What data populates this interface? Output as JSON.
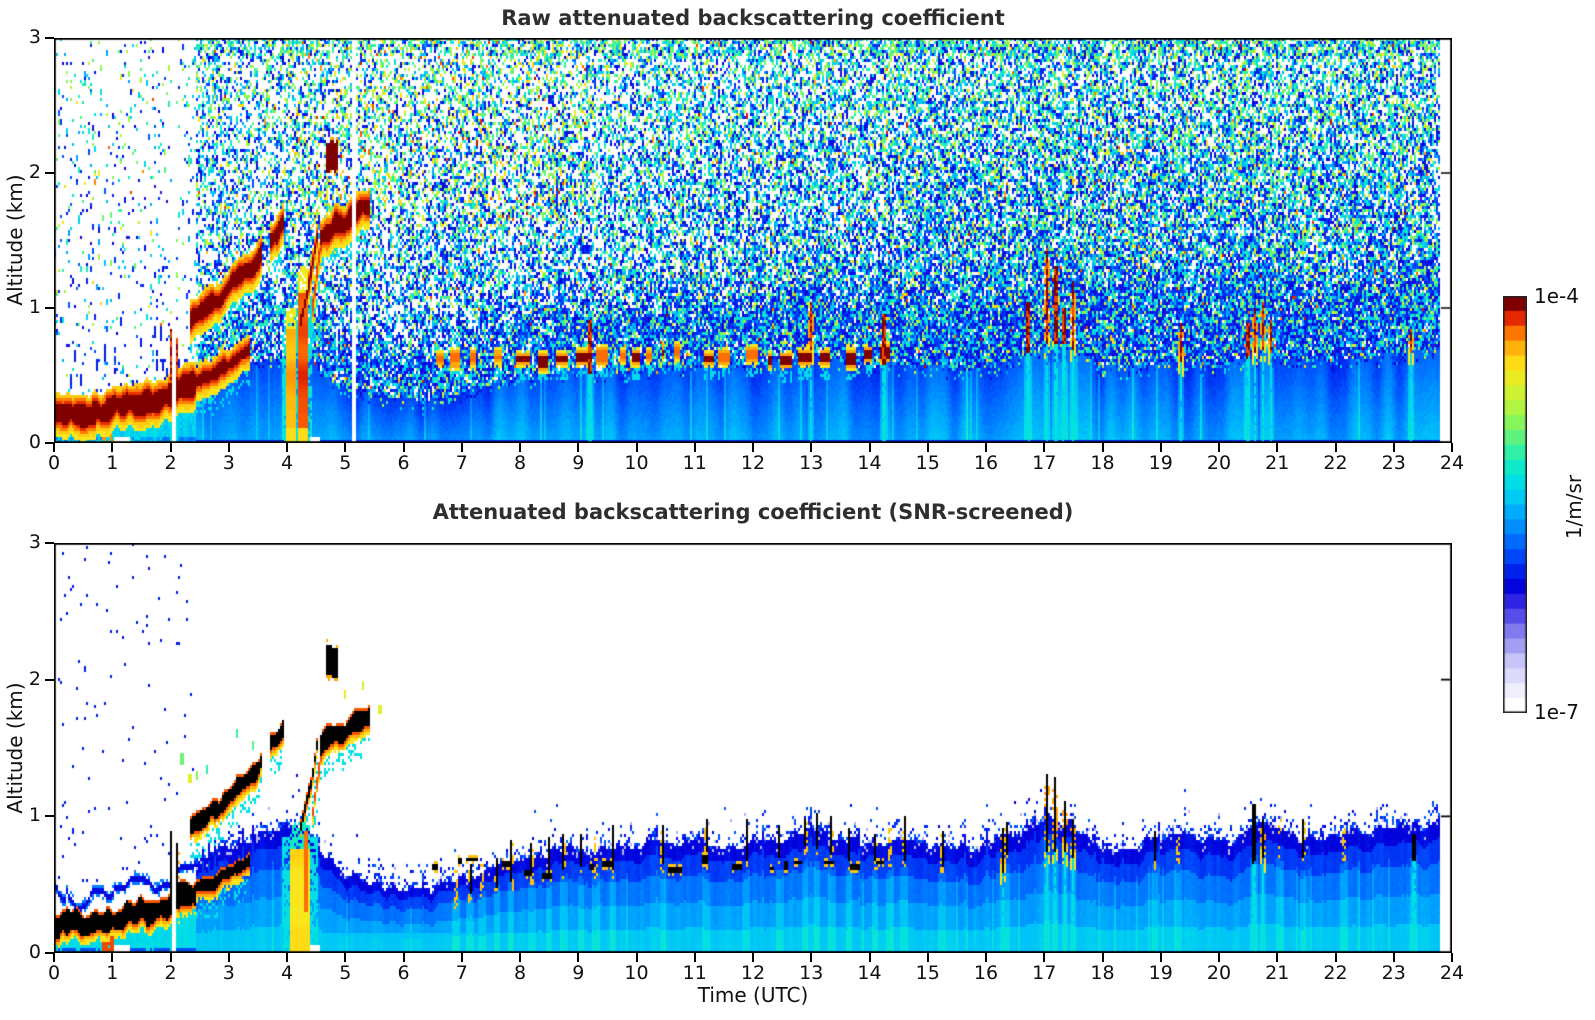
{
  "panels": [
    {
      "title": "Raw attenuated backscattering coefficient"
    },
    {
      "title": "Attenuated backscattering coefficient (SNR-screened)"
    }
  ],
  "x_axis": {
    "label": "Time (UTC)",
    "min": 0,
    "max": 24,
    "ticks": [
      0,
      1,
      2,
      3,
      4,
      5,
      6,
      7,
      8,
      9,
      10,
      11,
      12,
      13,
      14,
      15,
      16,
      17,
      18,
      19,
      20,
      21,
      22,
      23,
      24
    ]
  },
  "y_axis": {
    "label": "Altitude (km)",
    "min": 0,
    "max": 3,
    "ticks": [
      0,
      1,
      2,
      3
    ]
  },
  "colorbar": {
    "top_label": "1e-4",
    "bottom_label": "1e-7",
    "units": "1/m/sr",
    "levels": 28,
    "scale": "log"
  },
  "chart_data": {
    "type": "heatmap",
    "x": {
      "name": "Time (UTC)",
      "min": 0,
      "max": 24,
      "units": "hours"
    },
    "y": {
      "name": "Altitude (km)",
      "min": 0,
      "max": 3
    },
    "z_units": "1/m/sr",
    "scale": "log10",
    "z_min": 1e-07,
    "z_max": 0.0001,
    "data_end_hour": 23.78,
    "gap_hours_raw": [
      [
        2.03,
        2.09
      ],
      [
        5.12,
        5.17
      ]
    ],
    "gap_hours_screened": [
      [
        2.03,
        2.09
      ]
    ],
    "colormap_stops": [
      [
        0.0,
        "#ffffff"
      ],
      [
        0.05,
        "#e8e7fb"
      ],
      [
        0.1,
        "#cfcdf8"
      ],
      [
        0.14,
        "#aba7f3"
      ],
      [
        0.18,
        "#847ef0"
      ],
      [
        0.22,
        "#5a50ea"
      ],
      [
        0.26,
        "#2b22e4"
      ],
      [
        0.3,
        "#0000dc"
      ],
      [
        0.35,
        "#0032f5"
      ],
      [
        0.4,
        "#0064ff"
      ],
      [
        0.45,
        "#0092ff"
      ],
      [
        0.5,
        "#00bcfb"
      ],
      [
        0.55,
        "#00dcea"
      ],
      [
        0.6,
        "#10ecc4"
      ],
      [
        0.65,
        "#48f192"
      ],
      [
        0.7,
        "#84f55e"
      ],
      [
        0.75,
        "#b8f53c"
      ],
      [
        0.8,
        "#e0f028"
      ],
      [
        0.84,
        "#fce51b"
      ],
      [
        0.88,
        "#ffc30e"
      ],
      [
        0.91,
        "#ff9305"
      ],
      [
        0.94,
        "#f95b00"
      ],
      [
        0.965,
        "#e42800"
      ],
      [
        0.985,
        "#bc0700"
      ],
      [
        1.0,
        "#800000"
      ]
    ],
    "bl_top_km": [
      [
        0,
        0.45
      ],
      [
        0.4,
        0.36
      ],
      [
        0.7,
        0.42
      ],
      [
        1.0,
        0.44
      ],
      [
        1.4,
        0.52
      ],
      [
        1.8,
        0.5
      ],
      [
        2.05,
        0.55
      ],
      [
        2.3,
        0.6
      ],
      [
        2.6,
        0.72
      ],
      [
        3.0,
        0.78
      ],
      [
        3.4,
        0.83
      ],
      [
        3.8,
        0.88
      ],
      [
        4.1,
        0.92
      ],
      [
        4.35,
        0.95
      ],
      [
        4.6,
        0.72
      ],
      [
        4.9,
        0.6
      ],
      [
        5.2,
        0.56
      ],
      [
        5.6,
        0.52
      ],
      [
        6.0,
        0.46
      ],
      [
        6.35,
        0.44
      ],
      [
        6.7,
        0.5
      ],
      [
        7.0,
        0.55
      ],
      [
        7.4,
        0.6
      ],
      [
        7.8,
        0.65
      ],
      [
        8.2,
        0.7
      ],
      [
        8.6,
        0.73
      ],
      [
        9.0,
        0.78
      ],
      [
        9.4,
        0.74
      ],
      [
        9.8,
        0.76
      ],
      [
        10.2,
        0.78
      ],
      [
        10.6,
        0.8
      ],
      [
        11.0,
        0.82
      ],
      [
        11.4,
        0.78
      ],
      [
        11.8,
        0.8
      ],
      [
        12.2,
        0.82
      ],
      [
        12.6,
        0.86
      ],
      [
        13.0,
        0.94
      ],
      [
        13.2,
        0.88
      ],
      [
        13.6,
        0.82
      ],
      [
        14.0,
        0.8
      ],
      [
        14.4,
        0.84
      ],
      [
        14.8,
        0.8
      ],
      [
        15.2,
        0.78
      ],
      [
        15.6,
        0.76
      ],
      [
        16.0,
        0.8
      ],
      [
        16.4,
        0.86
      ],
      [
        16.8,
        0.92
      ],
      [
        17.1,
        1.0
      ],
      [
        17.4,
        0.98
      ],
      [
        17.7,
        0.88
      ],
      [
        18.0,
        0.8
      ],
      [
        18.4,
        0.76
      ],
      [
        18.8,
        0.8
      ],
      [
        19.2,
        0.85
      ],
      [
        19.6,
        0.83
      ],
      [
        20.0,
        0.78
      ],
      [
        20.4,
        0.85
      ],
      [
        20.7,
        0.95
      ],
      [
        21.0,
        0.9
      ],
      [
        21.4,
        0.84
      ],
      [
        21.8,
        0.87
      ],
      [
        22.2,
        0.88
      ],
      [
        22.6,
        0.9
      ],
      [
        23.0,
        0.9
      ],
      [
        23.4,
        0.93
      ],
      [
        23.78,
        0.95
      ]
    ],
    "noise": {
      "density_vs_hour": [
        [
          0,
          0.1
        ],
        [
          1.85,
          0.1
        ],
        [
          2.7,
          0.52
        ],
        [
          5,
          0.55
        ],
        [
          8,
          0.6
        ],
        [
          11,
          0.68
        ],
        [
          14,
          0.78
        ],
        [
          17,
          0.84
        ],
        [
          24,
          0.86
        ]
      ],
      "warm_region": {
        "t0": 4.0,
        "t1": 9.3,
        "z_min": 1.6
      }
    },
    "features": {
      "ground_layer": {
        "path": [
          [
            0,
            0.2
          ],
          [
            0.3,
            0.22
          ],
          [
            0.6,
            0.21
          ],
          [
            0.9,
            0.25
          ],
          [
            1.2,
            0.27
          ],
          [
            1.5,
            0.3
          ],
          [
            1.75,
            0.3
          ],
          [
            1.95,
            0.33
          ],
          [
            2.1,
            0.4
          ],
          [
            2.25,
            0.44
          ],
          [
            2.45,
            0.45
          ]
        ],
        "half": 0.075
      },
      "ground_layer_rise": {
        "path": [
          [
            2.45,
            0.46
          ],
          [
            2.6,
            0.5
          ],
          [
            2.85,
            0.55
          ],
          [
            3.1,
            0.61
          ],
          [
            3.35,
            0.66
          ]
        ],
        "half": 0.04
      },
      "ribbon1": {
        "path": [
          [
            2.35,
            0.92
          ],
          [
            2.6,
            1.02
          ],
          [
            2.85,
            1.06
          ],
          [
            3.05,
            1.17
          ],
          [
            3.25,
            1.24
          ],
          [
            3.45,
            1.33
          ],
          [
            3.6,
            1.44
          ],
          [
            3.75,
            1.53
          ],
          [
            3.95,
            1.63
          ]
        ],
        "half": 0.055,
        "gap": [
          3.56,
          3.7
        ]
      },
      "ribbon2": {
        "path": [
          [
            4.55,
            1.48
          ],
          [
            4.7,
            1.57
          ],
          [
            4.85,
            1.62
          ],
          [
            5.0,
            1.6
          ],
          [
            5.15,
            1.68
          ],
          [
            5.3,
            1.73
          ],
          [
            5.42,
            1.75
          ]
        ],
        "half": 0.065
      },
      "diag": {
        "path": [
          [
            4.22,
            0.9
          ],
          [
            4.34,
            1.1
          ],
          [
            4.44,
            1.32
          ],
          [
            4.52,
            1.55
          ]
        ],
        "half": 0.04
      },
      "red_streak": {
        "path": [
          [
            4.44,
            1.0
          ],
          [
            4.52,
            1.28
          ],
          [
            4.6,
            1.52
          ]
        ],
        "half": 0.03
      },
      "cloud": {
        "t0": 4.68,
        "t1": 4.86,
        "z0": 2.02,
        "z1": 2.24
      },
      "surface_red_column": {
        "t0": 0.82,
        "t1": 1.04
      },
      "white_notches": [
        [
          1.02,
          1.3
        ],
        [
          4.38,
          4.56
        ]
      ],
      "elevated_layer": {
        "t0": 6.35,
        "t1": 14.45,
        "z_center": 0.63,
        "z_amp": 0.07
      },
      "raw_spikes": [
        [
          2.02,
          0.85
        ],
        [
          2.1,
          0.78
        ],
        [
          9.2,
          0.92
        ],
        [
          13.0,
          1.05
        ],
        [
          14.25,
          0.95
        ],
        [
          16.72,
          1.05
        ],
        [
          17.05,
          1.45
        ],
        [
          17.2,
          1.3
        ],
        [
          17.34,
          1.0
        ],
        [
          17.5,
          1.2
        ],
        [
          19.35,
          0.9
        ],
        [
          20.5,
          0.9
        ],
        [
          20.62,
          1.0
        ],
        [
          20.75,
          1.05
        ],
        [
          20.88,
          0.92
        ],
        [
          23.3,
          0.85
        ]
      ],
      "screened_spikes": [
        [
          2.02,
          0.9
        ],
        [
          2.12,
          0.8
        ],
        [
          16.3,
          0.92
        ],
        [
          17.05,
          1.32
        ],
        [
          17.18,
          1.28
        ],
        [
          17.35,
          1.12
        ],
        [
          17.5,
          0.98
        ],
        [
          20.6,
          1.08
        ],
        [
          20.75,
          0.98
        ],
        [
          23.35,
          0.88
        ]
      ],
      "screened_small_spike_times": [
        6.9,
        7.15,
        7.35,
        7.6,
        7.85,
        8.2,
        8.5,
        8.75,
        9.05,
        9.3,
        9.6,
        10.45,
        11.2,
        11.9,
        12.45,
        12.9,
        13.1,
        13.35,
        13.65,
        14.1,
        14.35,
        14.6,
        15.25,
        16.35,
        18.9,
        19.3,
        21.05,
        21.45,
        22.15
      ],
      "plume_raw": {
        "cols": [
          {
            "t0": 3.98,
            "t1": 4.14,
            "top": 1.0,
            "coreU": 0.89
          },
          {
            "t0": 4.18,
            "t1": 4.36,
            "top": 1.32,
            "coreU": 0.95
          }
        ]
      },
      "plume_screened": {
        "t0": 4.05,
        "t1": 4.4,
        "top": 0.95,
        "coreU": 0.85,
        "red_t": [
          4.28,
          4.35
        ],
        "red_z": [
          0.3,
          0.9
        ],
        "black_t": [
          4.245,
          4.268
        ],
        "black_z": [
          0.35,
          0.95
        ]
      },
      "debris_specks": [
        [
          2.05,
          1.17
        ],
        [
          2.2,
          1.42
        ],
        [
          2.33,
          1.28
        ],
        [
          2.45,
          1.3
        ],
        [
          2.62,
          1.35
        ],
        [
          3.15,
          1.6
        ],
        [
          3.42,
          1.52
        ],
        [
          5.0,
          1.9
        ],
        [
          5.3,
          1.95
        ],
        [
          5.6,
          1.78
        ]
      ]
    }
  }
}
